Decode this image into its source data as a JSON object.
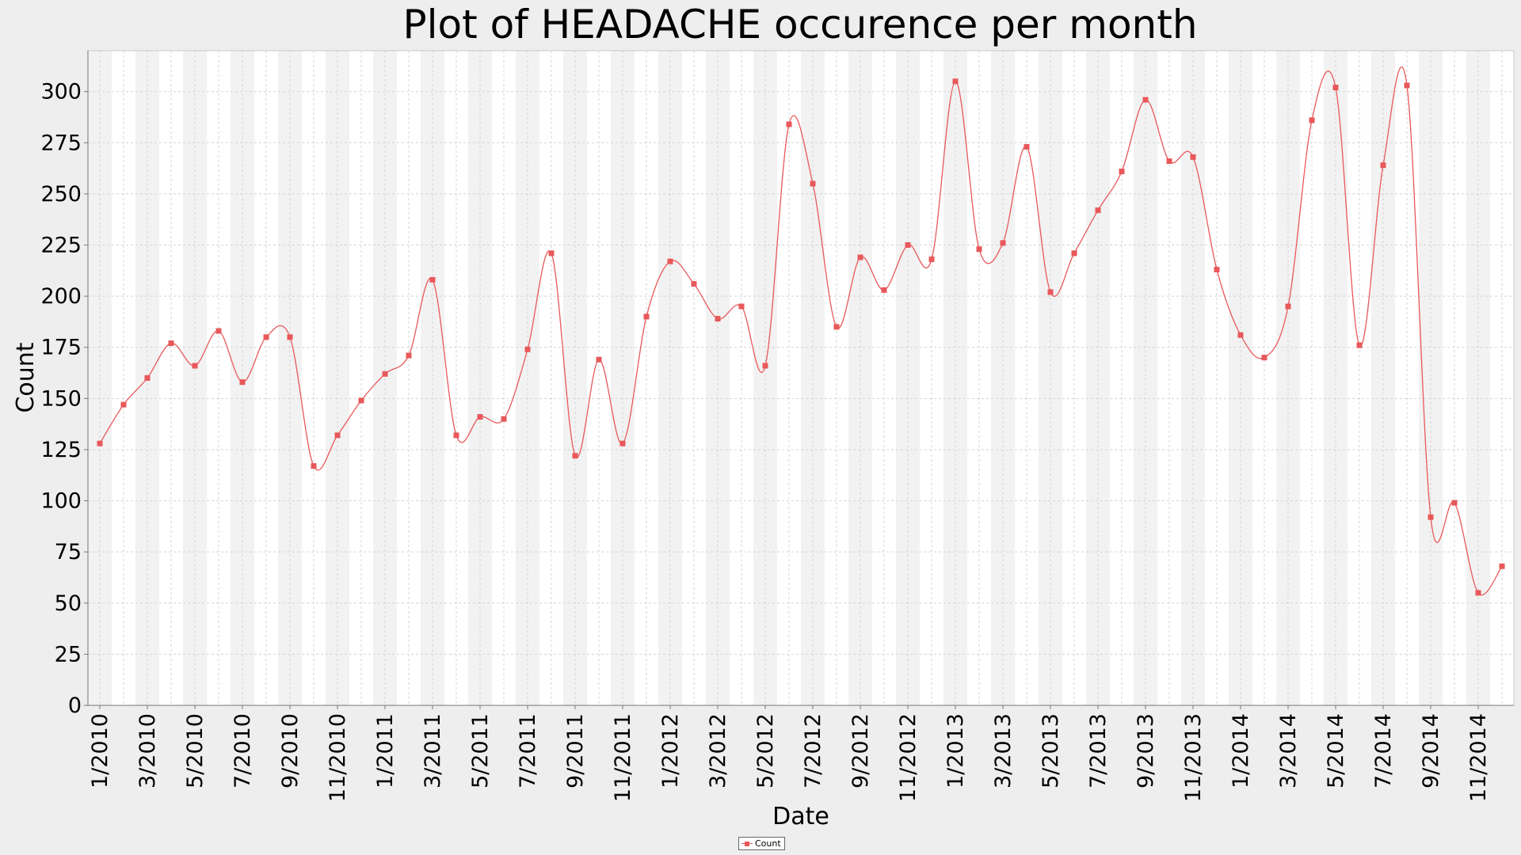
{
  "chart_data": {
    "type": "line",
    "title": "Plot of HEADACHE occurence per month",
    "xlabel": "Date",
    "ylabel": "Count",
    "ylim": [
      0,
      320
    ],
    "yticks": [
      0,
      25,
      50,
      75,
      100,
      125,
      150,
      175,
      200,
      225,
      250,
      275,
      300
    ],
    "xtick_labels": [
      "1/2010",
      "3/2010",
      "5/2010",
      "7/2010",
      "9/2010",
      "11/2010",
      "1/2011",
      "3/2011",
      "5/2011",
      "7/2011",
      "9/2011",
      "11/2011",
      "1/2012",
      "3/2012",
      "5/2012",
      "7/2012",
      "9/2012",
      "11/2012",
      "1/2013",
      "3/2013",
      "5/2013",
      "7/2013",
      "9/2013",
      "11/2013",
      "1/2014",
      "3/2014",
      "5/2014",
      "7/2014",
      "9/2014",
      "11/2014"
    ],
    "grid": true,
    "legend": "bottom-center",
    "colors": {
      "series": "#e8585a",
      "band": "#f2f2f2",
      "plot_bg": "#ffffff",
      "grid": "#d4d4d4"
    },
    "series": [
      {
        "name": "Count",
        "x": [
          "1/2010",
          "2/2010",
          "3/2010",
          "4/2010",
          "5/2010",
          "6/2010",
          "7/2010",
          "8/2010",
          "9/2010",
          "10/2010",
          "11/2010",
          "12/2010",
          "1/2011",
          "2/2011",
          "3/2011",
          "4/2011",
          "5/2011",
          "6/2011",
          "7/2011",
          "8/2011",
          "9/2011",
          "10/2011",
          "11/2011",
          "12/2011",
          "1/2012",
          "2/2012",
          "3/2012",
          "4/2012",
          "5/2012",
          "6/2012",
          "7/2012",
          "8/2012",
          "9/2012",
          "10/2012",
          "11/2012",
          "12/2012",
          "1/2013",
          "2/2013",
          "3/2013",
          "4/2013",
          "5/2013",
          "6/2013",
          "7/2013",
          "8/2013",
          "9/2013",
          "10/2013",
          "11/2013",
          "12/2013",
          "1/2014",
          "2/2014",
          "3/2014",
          "4/2014",
          "5/2014",
          "6/2014",
          "7/2014",
          "8/2014",
          "9/2014",
          "10/2014",
          "11/2014",
          "12/2014"
        ],
        "values": [
          128,
          147,
          160,
          177,
          166,
          183,
          158,
          180,
          180,
          117,
          132,
          149,
          162,
          171,
          208,
          132,
          141,
          140,
          174,
          221,
          122,
          169,
          128,
          190,
          217,
          206,
          189,
          195,
          166,
          284,
          255,
          185,
          219,
          203,
          225,
          218,
          305,
          223,
          226,
          273,
          202,
          221,
          242,
          261,
          296,
          266,
          268,
          213,
          181,
          170,
          195,
          286,
          302,
          176,
          264,
          303,
          92,
          99,
          55,
          68
        ]
      }
    ]
  },
  "legend_label": "Count"
}
